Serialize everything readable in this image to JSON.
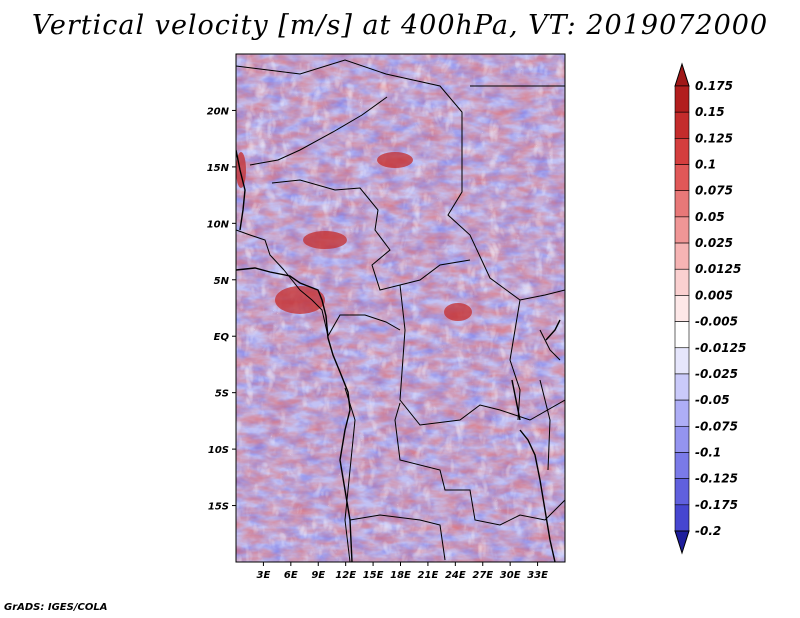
{
  "title": "Vertical velocity [m/s] at 400hPa, VT: 2019072000",
  "footer": "GrADS: IGES/COLA",
  "map": {
    "lon_range": [
      0,
      36
    ],
    "lat_range": [
      -20,
      25
    ],
    "lat_ticks": [
      {
        "value": 20,
        "label": "20N"
      },
      {
        "value": 15,
        "label": "15N"
      },
      {
        "value": 10,
        "label": "10N"
      },
      {
        "value": 5,
        "label": "5N"
      },
      {
        "value": 0,
        "label": "EQ"
      },
      {
        "value": -5,
        "label": "5S"
      },
      {
        "value": -10,
        "label": "10S"
      },
      {
        "value": -15,
        "label": "15S"
      }
    ],
    "lon_ticks": [
      {
        "value": 3,
        "label": "3E"
      },
      {
        "value": 6,
        "label": "6E"
      },
      {
        "value": 9,
        "label": "9E"
      },
      {
        "value": 12,
        "label": "12E"
      },
      {
        "value": 15,
        "label": "15E"
      },
      {
        "value": 18,
        "label": "18E"
      },
      {
        "value": 21,
        "label": "21E"
      },
      {
        "value": 24,
        "label": "24E"
      },
      {
        "value": 27,
        "label": "27E"
      },
      {
        "value": 30,
        "label": "30E"
      },
      {
        "value": 33,
        "label": "33E"
      }
    ]
  },
  "colorbar": {
    "levels": [
      {
        "label": "0.175",
        "color": "#b21e1e"
      },
      {
        "label": "0.15",
        "color": "#c42c2c"
      },
      {
        "label": "0.125",
        "color": "#d43e3e"
      },
      {
        "label": "0.1",
        "color": "#e05858"
      },
      {
        "label": "0.075",
        "color": "#e87878"
      },
      {
        "label": "0.05",
        "color": "#f09696"
      },
      {
        "label": "0.025",
        "color": "#f6b4b4"
      },
      {
        "label": "0.0125",
        "color": "#fad0d0"
      },
      {
        "label": "0.005",
        "color": "#fde8e8"
      },
      {
        "label": "-0.005",
        "color": "#ffffff"
      },
      {
        "label": "-0.0125",
        "color": "#e6e6fc"
      },
      {
        "label": "-0.025",
        "color": "#cacafa"
      },
      {
        "label": "-0.05",
        "color": "#aeaef6"
      },
      {
        "label": "-0.075",
        "color": "#9494f0"
      },
      {
        "label": "-0.1",
        "color": "#7a7ae8"
      },
      {
        "label": "-0.125",
        "color": "#6060de"
      },
      {
        "label": "-0.175",
        "color": "#4646d0"
      },
      {
        "label": "-0.2",
        "color": "#2e2eb8"
      }
    ],
    "top_color": "#a01818",
    "bottom_color": "#1e1e9c"
  }
}
